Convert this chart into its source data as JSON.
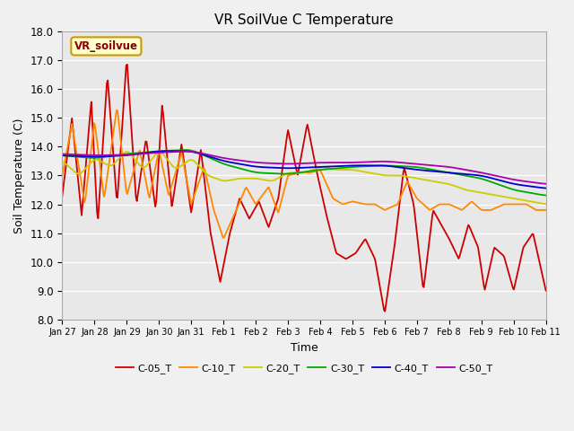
{
  "title": "VR SoilVue C Temperature",
  "xlabel": "Time",
  "ylabel": "Soil Temperature (C)",
  "ylim": [
    8.0,
    18.0
  ],
  "yticks": [
    8.0,
    9.0,
    10.0,
    11.0,
    12.0,
    13.0,
    14.0,
    15.0,
    16.0,
    17.0,
    18.0
  ],
  "plot_bg": "#e8e8e8",
  "grid_color": "#ffffff",
  "legend_label": "VR_soilvue",
  "legend_box_color": "#ffffcc",
  "legend_box_edge": "#cc9900",
  "series_names": [
    "C-05_T",
    "C-10_T",
    "C-20_T",
    "C-30_T",
    "C-40_T",
    "C-50_T"
  ],
  "series_colors": [
    "#cc0000",
    "#ff8800",
    "#cccc00",
    "#00aa00",
    "#0000cc",
    "#aa00aa"
  ],
  "series_lw": [
    1.3,
    1.3,
    1.3,
    1.3,
    1.3,
    1.3
  ],
  "xtick_labels": [
    "Jan 27",
    "Jan 28",
    "Jan 29",
    "Jan 30",
    "Jan 31",
    "Feb 1",
    "Feb 2",
    "Feb 3",
    "Feb 4",
    "Feb 5",
    "Feb 6",
    "Feb 7",
    "Feb 8",
    "Feb 9",
    "Feb 10",
    "Feb 11"
  ],
  "fig_facecolor": "#f0f0f0"
}
